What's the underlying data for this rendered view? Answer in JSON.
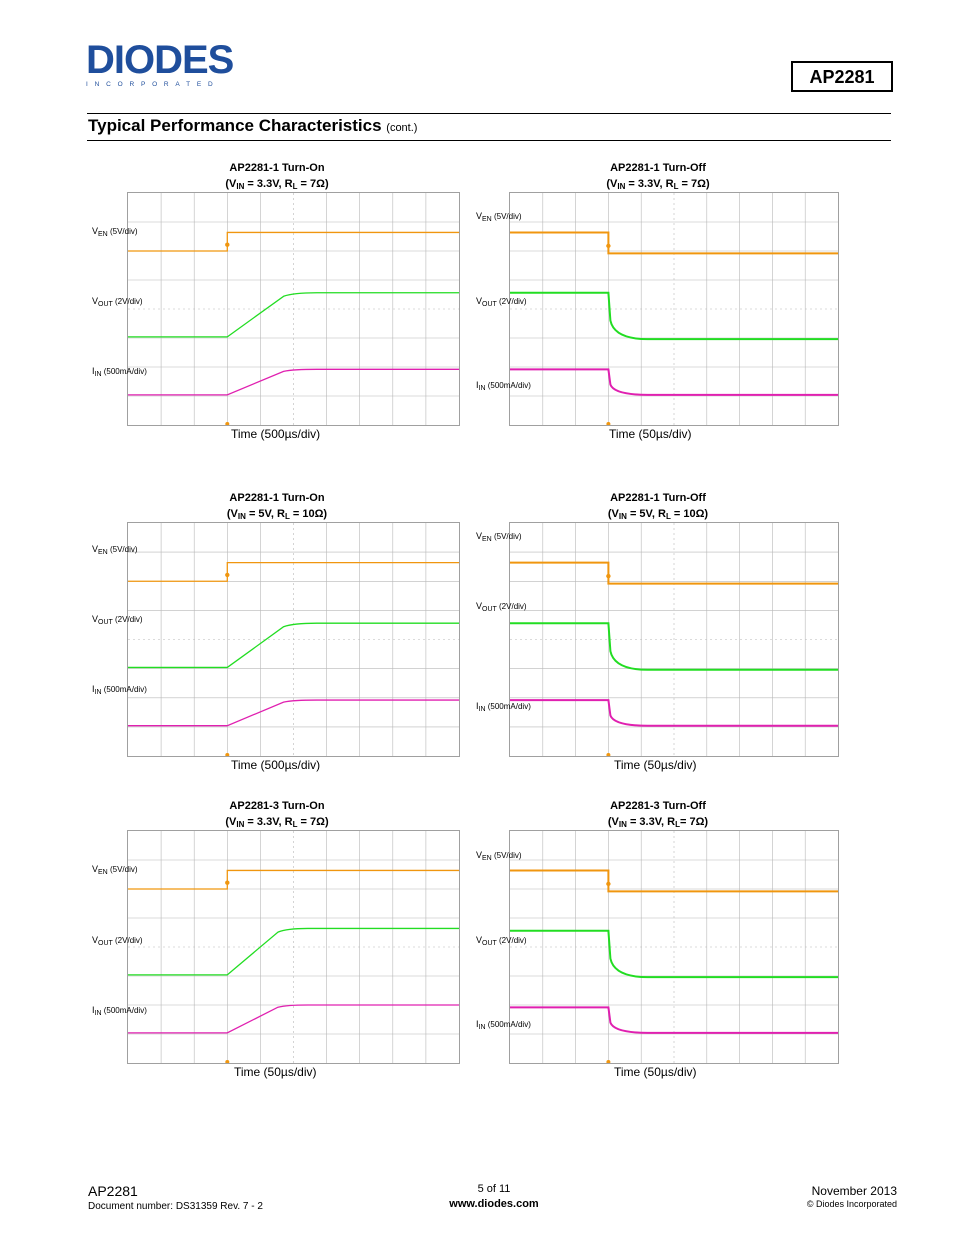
{
  "header": {
    "logo_text": "DIODES",
    "logo_sub": "INCORPORATED",
    "part_number": "AP2281"
  },
  "section": {
    "title": "Typical Performance Characteristics",
    "cont": "(cont.)"
  },
  "plots": [
    {
      "title": "AP2281-1 Turn-On",
      "cond_pre": "(V",
      "cond_sub1": "IN",
      "cond_mid": " = 3.3V, R",
      "cond_sub2": "L",
      "cond_post": " = 7Ω)",
      "xlabel": "Time (500µs/div)",
      "channels": [
        {
          "sym": "V",
          "sub": "EN",
          "scale": "(5V/div)"
        },
        {
          "sym": "V",
          "sub": "OUT",
          "scale": "(2V/div)"
        },
        {
          "sym": "I",
          "sub": "IN",
          "scale": "(500mA/div)"
        }
      ],
      "kind": "on-slow"
    },
    {
      "title": "AP2281-1 Turn-Off",
      "cond_pre": "(V",
      "cond_sub1": "IN",
      "cond_mid": " = 3.3V, R",
      "cond_sub2": "L",
      "cond_post": " = 7Ω)",
      "xlabel": "Time (50µs/div)",
      "channels": [
        {
          "sym": "V",
          "sub": "EN",
          "scale": "(5V/div)"
        },
        {
          "sym": "V",
          "sub": "OUT",
          "scale": "(2V/div)"
        },
        {
          "sym": "I",
          "sub": "IN",
          "scale": "(500mA/div)"
        }
      ],
      "kind": "off"
    },
    {
      "title": "AP2281-1 Turn-On",
      "cond_pre": "(V",
      "cond_sub1": "IN",
      "cond_mid": " = 5V, R",
      "cond_sub2": "L",
      "cond_post": " = 10Ω)",
      "xlabel": "Time (500µs/div)",
      "channels": [
        {
          "sym": "V",
          "sub": "EN",
          "scale": "(5V/div)"
        },
        {
          "sym": "V",
          "sub": "OUT",
          "scale": "(2V/div)"
        },
        {
          "sym": "I",
          "sub": "IN",
          "scale": "(500mA/div)"
        }
      ],
      "kind": "on-slow"
    },
    {
      "title": "AP2281-1 Turn-Off",
      "cond_pre": "(V",
      "cond_sub1": "IN",
      "cond_mid": " = 5V, R",
      "cond_sub2": "L",
      "cond_post": " = 10Ω)",
      "xlabel": "Time (50µs/div)",
      "channels": [
        {
          "sym": "V",
          "sub": "EN",
          "scale": "(5V/div)"
        },
        {
          "sym": "V",
          "sub": "OUT",
          "scale": "(2V/div)"
        },
        {
          "sym": "I",
          "sub": "IN",
          "scale": "(500mA/div)"
        }
      ],
      "kind": "off"
    },
    {
      "title": "AP2281-3 Turn-On",
      "cond_pre": "(V",
      "cond_sub1": "IN",
      "cond_mid": " = 3.3V, R",
      "cond_sub2": "L",
      "cond_post": " = 7Ω)",
      "xlabel": "Time (50µs/div)",
      "channels": [
        {
          "sym": "V",
          "sub": "EN",
          "scale": "(5V/div)"
        },
        {
          "sym": "V",
          "sub": "OUT",
          "scale": "(2V/div)"
        },
        {
          "sym": "I",
          "sub": "IN",
          "scale": "(500mA/div)"
        }
      ],
      "kind": "on-fast"
    },
    {
      "title": "AP2281-3 Turn-Off",
      "cond_pre": "(V",
      "cond_sub1": "IN",
      "cond_mid": " = 3.3V, R",
      "cond_sub2": "L",
      "cond_post": "= 7Ω)",
      "xlabel": "Time (50µs/div)",
      "channels": [
        {
          "sym": "V",
          "sub": "EN",
          "scale": "(5V/div)"
        },
        {
          "sym": "V",
          "sub": "OUT",
          "scale": "(2V/div)"
        },
        {
          "sym": "I",
          "sub": "IN",
          "scale": "(500mA/div)"
        }
      ],
      "kind": "off"
    }
  ],
  "colors": {
    "ven": "#f0960f",
    "vout": "#22dd22",
    "iin": "#e020b0",
    "grid": "#b8b8b8"
  },
  "footer": {
    "part": "AP2281",
    "doc": "Document number: DS31359 Rev. 7 - 2",
    "page": "5 of 11",
    "url": "www.diodes.com",
    "date": "November 2013",
    "copyright": "© Diodes Incorporated"
  }
}
